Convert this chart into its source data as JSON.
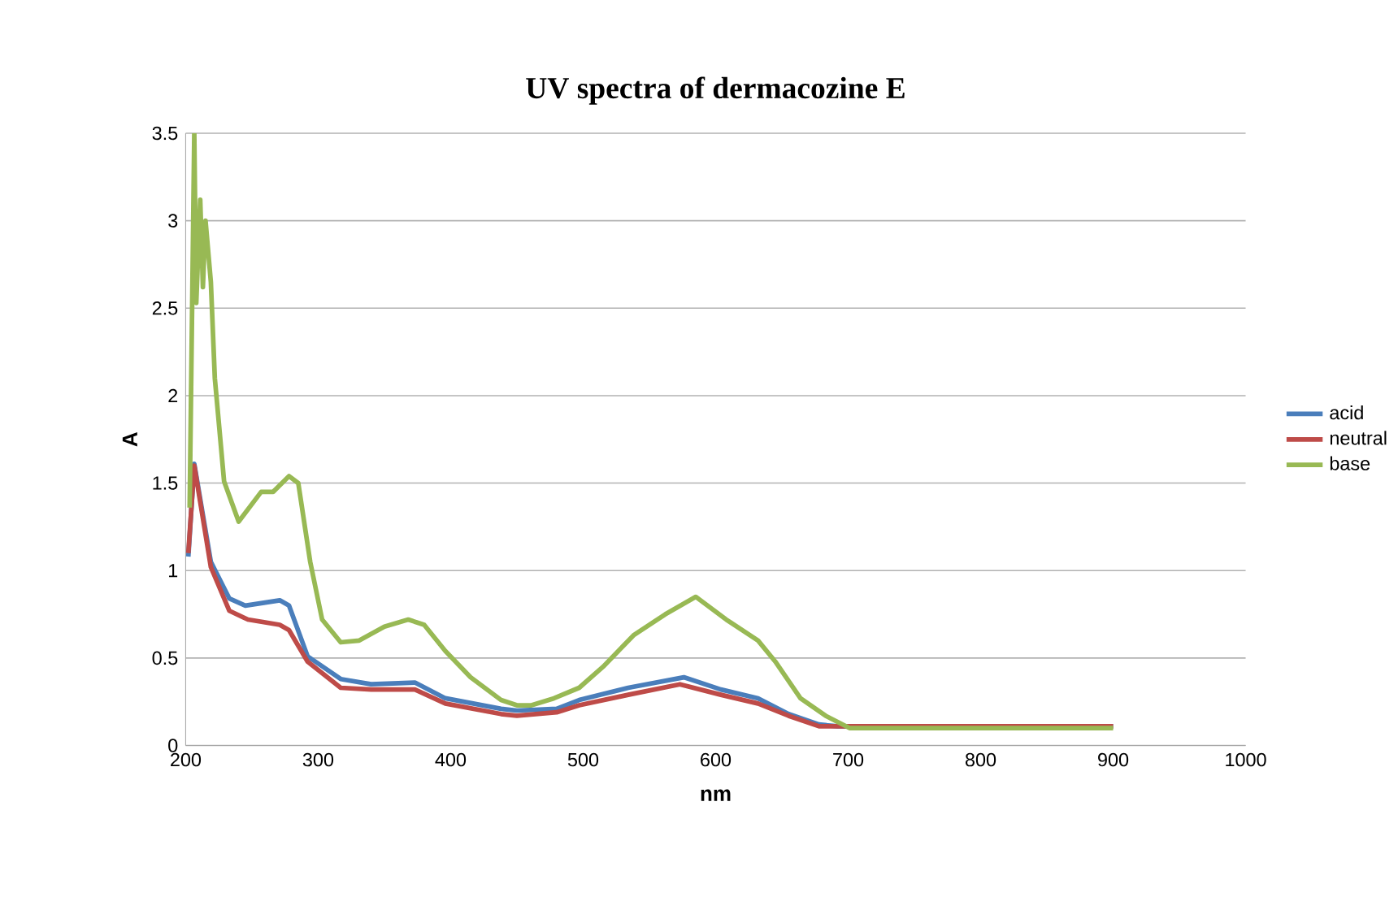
{
  "chart_data": {
    "type": "line",
    "title": "UV spectra of dermacozine E",
    "xlabel": "nm",
    "ylabel": "A",
    "xlim": [
      200,
      1000
    ],
    "xticks": [
      200,
      300,
      400,
      500,
      600,
      700,
      800,
      900,
      1000
    ],
    "ylim": [
      0,
      3.5
    ],
    "yticks": [
      0,
      0.5,
      1,
      1.5,
      2,
      2.5,
      3,
      3.5
    ],
    "grid": "y",
    "legend": "right",
    "marker": "none",
    "line_style": "solid",
    "series": [
      {
        "name": "acid",
        "color": "#4a7ebb",
        "x": [
          202,
          206.5,
          219,
          233,
          245,
          271,
          278,
          292,
          317,
          340,
          373,
          396,
          438,
          450,
          480,
          497,
          534,
          576,
          604,
          632,
          655,
          678,
          692,
          900
        ],
        "values": [
          1.08,
          1.61,
          1.05,
          0.84,
          0.8,
          0.83,
          0.8,
          0.51,
          0.38,
          0.35,
          0.36,
          0.27,
          0.21,
          0.2,
          0.21,
          0.26,
          0.33,
          0.39,
          0.32,
          0.27,
          0.18,
          0.12,
          0.11,
          0.11
        ]
      },
      {
        "name": "neutral",
        "color": "#be4b48",
        "x": [
          202,
          206.5,
          219,
          233,
          247,
          271,
          278,
          292,
          317,
          340,
          373,
          396,
          438,
          450,
          480,
          497,
          534,
          573,
          604,
          632,
          655,
          678,
          900
        ],
        "values": [
          1.1,
          1.6,
          1.02,
          0.77,
          0.72,
          0.69,
          0.66,
          0.48,
          0.33,
          0.32,
          0.32,
          0.24,
          0.18,
          0.17,
          0.19,
          0.23,
          0.29,
          0.35,
          0.29,
          0.24,
          0.17,
          0.11,
          0.11
        ]
      },
      {
        "name": "base",
        "color": "#98b954",
        "x": [
          203,
          206.5,
          208,
          211,
          213,
          215,
          219,
          222,
          229,
          240,
          257,
          266,
          278,
          285,
          294,
          303,
          317,
          331,
          350,
          368,
          380,
          396,
          415,
          438,
          450,
          461,
          478,
          497,
          515,
          538,
          562,
          585,
          608,
          632,
          645,
          664,
          683,
          701,
          900
        ],
        "values": [
          1.36,
          3.5,
          2.53,
          3.12,
          2.62,
          3.0,
          2.65,
          2.1,
          1.51,
          1.28,
          1.45,
          1.45,
          1.54,
          1.5,
          1.05,
          0.72,
          0.59,
          0.6,
          0.68,
          0.72,
          0.69,
          0.54,
          0.39,
          0.26,
          0.23,
          0.23,
          0.27,
          0.33,
          0.45,
          0.63,
          0.75,
          0.85,
          0.72,
          0.6,
          0.48,
          0.27,
          0.17,
          0.1,
          0.1
        ]
      }
    ]
  }
}
